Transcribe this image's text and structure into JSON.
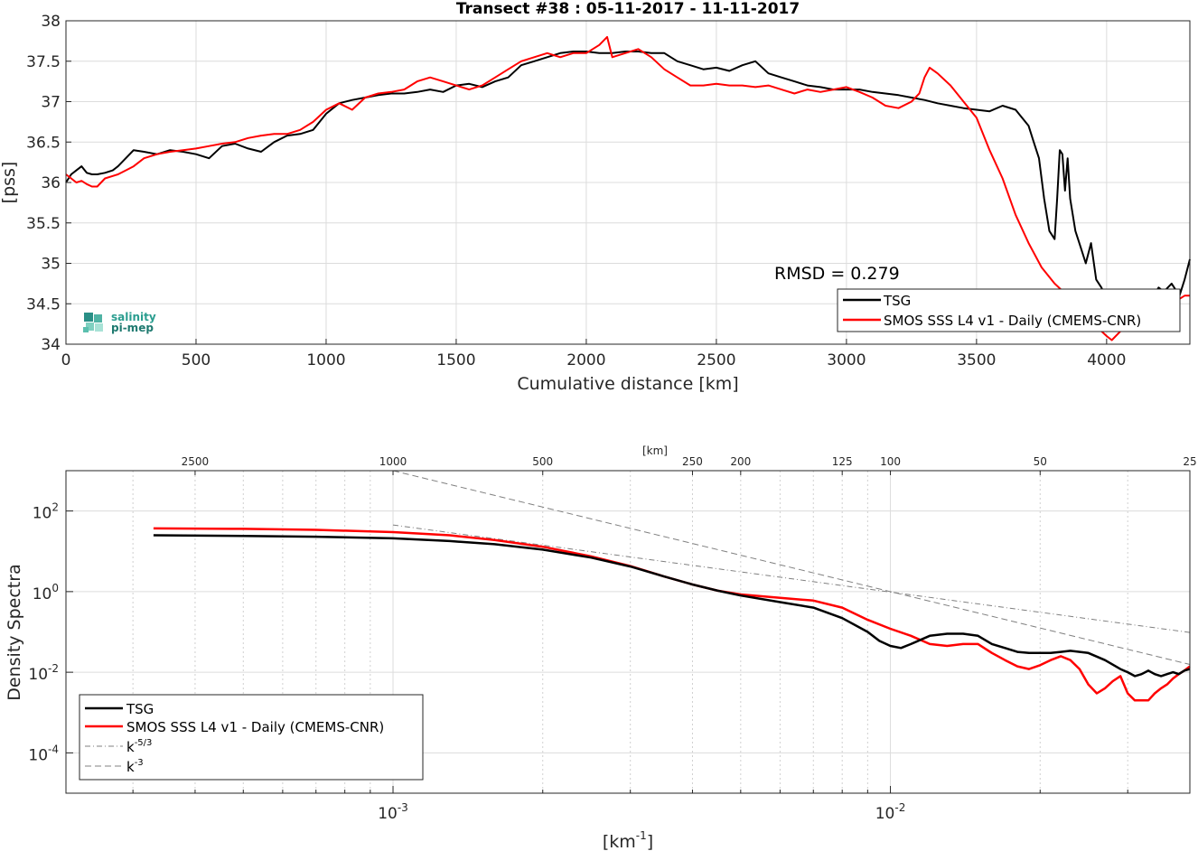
{
  "chart_data": [
    {
      "type": "line",
      "title": "Transect #38 : 05-11-2017 - 11-11-2017",
      "xlabel": "Cumulative distance [km]",
      "ylabel": "[pss]",
      "xlim": [
        0,
        4320
      ],
      "ylim": [
        34,
        38
      ],
      "xticks": [
        0,
        500,
        1000,
        1500,
        2000,
        2500,
        3000,
        3500,
        4000
      ],
      "yticks": [
        34,
        34.5,
        35,
        35.5,
        36,
        36.5,
        37,
        37.5,
        38
      ],
      "grid": true,
      "legend_position": "bottom-right",
      "annotation": "RMSD = 0.279",
      "logo": [
        "salinity",
        "pi-mep"
      ],
      "series": [
        {
          "name": "TSG",
          "color": "#000000",
          "x": [
            0,
            20,
            40,
            60,
            80,
            100,
            120,
            150,
            180,
            200,
            230,
            260,
            300,
            350,
            400,
            450,
            500,
            550,
            600,
            650,
            700,
            750,
            800,
            850,
            900,
            950,
            1000,
            1050,
            1100,
            1150,
            1200,
            1250,
            1300,
            1350,
            1400,
            1450,
            1500,
            1550,
            1600,
            1650,
            1700,
            1750,
            1800,
            1850,
            1900,
            1950,
            2000,
            2050,
            2100,
            2150,
            2200,
            2250,
            2300,
            2350,
            2400,
            2450,
            2500,
            2550,
            2600,
            2650,
            2700,
            2750,
            2800,
            2850,
            2900,
            2950,
            3000,
            3050,
            3100,
            3150,
            3200,
            3250,
            3300,
            3350,
            3400,
            3450,
            3500,
            3550,
            3600,
            3650,
            3700,
            3720,
            3740,
            3760,
            3780,
            3800,
            3810,
            3820,
            3830,
            3840,
            3850,
            3860,
            3880,
            3900,
            3920,
            3940,
            3960,
            3980,
            4000,
            4020,
            4040,
            4060,
            4080,
            4100,
            4120,
            4140,
            4160,
            4180,
            4200,
            4220,
            4250,
            4280,
            4300,
            4320
          ],
          "y": [
            36.0,
            36.1,
            36.15,
            36.2,
            36.12,
            36.1,
            36.1,
            36.12,
            36.15,
            36.2,
            36.3,
            36.4,
            36.38,
            36.35,
            36.4,
            36.38,
            36.35,
            36.3,
            36.45,
            36.48,
            36.42,
            36.38,
            36.5,
            36.58,
            36.6,
            36.65,
            36.85,
            36.98,
            37.02,
            37.05,
            37.08,
            37.1,
            37.1,
            37.12,
            37.15,
            37.12,
            37.2,
            37.22,
            37.18,
            37.25,
            37.3,
            37.45,
            37.5,
            37.55,
            37.6,
            37.62,
            37.62,
            37.6,
            37.6,
            37.62,
            37.62,
            37.6,
            37.6,
            37.5,
            37.45,
            37.4,
            37.42,
            37.38,
            37.45,
            37.5,
            37.35,
            37.3,
            37.25,
            37.2,
            37.18,
            37.15,
            37.15,
            37.15,
            37.12,
            37.1,
            37.08,
            37.05,
            37.02,
            36.98,
            36.95,
            36.92,
            36.9,
            36.88,
            36.95,
            36.9,
            36.7,
            36.5,
            36.3,
            35.8,
            35.4,
            35.3,
            35.8,
            36.4,
            36.35,
            35.9,
            36.3,
            35.8,
            35.4,
            35.2,
            35.0,
            35.25,
            34.8,
            34.7,
            34.55,
            34.5,
            34.6,
            34.55,
            34.5,
            34.45,
            34.5,
            34.5,
            34.55,
            34.6,
            34.7,
            34.65,
            34.75,
            34.6,
            34.8,
            35.05
          ]
        },
        {
          "name": "SMOS SSS L4 v1 - Daily (CMEMS-CNR)",
          "color": "#ff0000",
          "x": [
            0,
            20,
            40,
            60,
            80,
            100,
            120,
            150,
            180,
            200,
            230,
            260,
            300,
            350,
            400,
            450,
            500,
            550,
            600,
            650,
            700,
            750,
            800,
            850,
            900,
            950,
            1000,
            1050,
            1100,
            1150,
            1200,
            1250,
            1300,
            1350,
            1400,
            1450,
            1500,
            1550,
            1600,
            1650,
            1700,
            1750,
            1800,
            1850,
            1900,
            1950,
            2000,
            2050,
            2080,
            2100,
            2150,
            2200,
            2250,
            2300,
            2350,
            2400,
            2450,
            2500,
            2550,
            2600,
            2650,
            2700,
            2750,
            2800,
            2850,
            2900,
            2950,
            3000,
            3050,
            3100,
            3150,
            3200,
            3250,
            3280,
            3300,
            3320,
            3350,
            3400,
            3450,
            3500,
            3550,
            3600,
            3650,
            3700,
            3750,
            3800,
            3850,
            3900,
            3950,
            4000,
            4020,
            4050,
            4100,
            4150,
            4200,
            4250,
            4300,
            4320
          ],
          "y": [
            36.1,
            36.05,
            36.0,
            36.02,
            35.98,
            35.95,
            35.95,
            36.05,
            36.08,
            36.1,
            36.15,
            36.2,
            36.3,
            36.35,
            36.38,
            36.4,
            36.42,
            36.45,
            36.48,
            36.5,
            36.55,
            36.58,
            36.6,
            36.6,
            36.65,
            36.75,
            36.9,
            36.98,
            36.9,
            37.05,
            37.1,
            37.12,
            37.15,
            37.25,
            37.3,
            37.25,
            37.2,
            37.15,
            37.2,
            37.3,
            37.4,
            37.5,
            37.55,
            37.6,
            37.55,
            37.6,
            37.6,
            37.7,
            37.8,
            37.55,
            37.6,
            37.65,
            37.55,
            37.4,
            37.3,
            37.2,
            37.2,
            37.22,
            37.2,
            37.2,
            37.18,
            37.2,
            37.15,
            37.1,
            37.15,
            37.12,
            37.15,
            37.18,
            37.12,
            37.05,
            36.95,
            36.92,
            37.0,
            37.1,
            37.3,
            37.42,
            37.35,
            37.2,
            37.0,
            36.8,
            36.4,
            36.05,
            35.6,
            35.25,
            34.95,
            34.75,
            34.6,
            34.45,
            34.25,
            34.1,
            34.05,
            34.15,
            34.35,
            34.45,
            34.5,
            34.5,
            34.6,
            34.6
          ]
        }
      ]
    },
    {
      "type": "line",
      "title": "",
      "xlabel": "[km-1]",
      "xlabel_base": "[km",
      "xlabel_sup": "-1",
      "xlabel_end": "]",
      "ylabel": "Density Spectra",
      "xscale": "log",
      "yscale": "log",
      "xlim": [
        0.00022,
        0.04
      ],
      "ylim": [
        1e-05,
        1000
      ],
      "xticks": [
        "10-3",
        "10-2"
      ],
      "yticks": [
        "10-4",
        "10-2",
        "100",
        "102"
      ],
      "top_axis_label": "[km]",
      "top_axis_ticks": [
        "2500",
        "1000",
        "500",
        "250",
        "200",
        "125",
        "100",
        "50",
        "25"
      ],
      "top_axis_values": [
        2500,
        1000,
        500,
        250,
        200,
        125,
        100,
        50,
        25
      ],
      "grid": true,
      "legend_position": "bottom-left",
      "series": [
        {
          "name": "TSG",
          "color": "#000000",
          "x": [
            0.00033,
            0.0005,
            0.0007,
            0.001,
            0.0013,
            0.0016,
            0.002,
            0.0025,
            0.003,
            0.0035,
            0.004,
            0.0045,
            0.005,
            0.006,
            0.007,
            0.008,
            0.009,
            0.0095,
            0.01,
            0.0105,
            0.011,
            0.012,
            0.013,
            0.014,
            0.015,
            0.016,
            0.017,
            0.018,
            0.019,
            0.02,
            0.021,
            0.022,
            0.023,
            0.025,
            0.027,
            0.029,
            0.03,
            0.031,
            0.032,
            0.033,
            0.034,
            0.035,
            0.036,
            0.037,
            0.038,
            0.039,
            0.04
          ],
          "y": [
            25,
            24,
            23,
            21,
            18,
            15,
            11,
            7,
            4.2,
            2.4,
            1.5,
            1.05,
            0.8,
            0.55,
            0.4,
            0.22,
            0.1,
            0.06,
            0.045,
            0.04,
            0.05,
            0.08,
            0.09,
            0.09,
            0.08,
            0.05,
            0.04,
            0.032,
            0.03,
            0.03,
            0.03,
            0.032,
            0.034,
            0.03,
            0.02,
            0.012,
            0.01,
            0.008,
            0.009,
            0.011,
            0.009,
            0.008,
            0.009,
            0.01,
            0.009,
            0.011,
            0.012
          ]
        },
        {
          "name": "SMOS SSS L4 v1 - Daily (CMEMS-CNR)",
          "color": "#ff0000",
          "x": [
            0.00033,
            0.0005,
            0.0007,
            0.001,
            0.0013,
            0.0016,
            0.002,
            0.0025,
            0.003,
            0.0035,
            0.004,
            0.0045,
            0.005,
            0.006,
            0.007,
            0.008,
            0.009,
            0.01,
            0.011,
            0.012,
            0.013,
            0.014,
            0.015,
            0.016,
            0.017,
            0.018,
            0.019,
            0.02,
            0.021,
            0.022,
            0.023,
            0.024,
            0.025,
            0.026,
            0.027,
            0.028,
            0.029,
            0.03,
            0.031,
            0.032,
            0.033,
            0.034,
            0.035,
            0.036,
            0.037,
            0.038,
            0.039,
            0.04
          ],
          "y": [
            37,
            36,
            34,
            30,
            25,
            19,
            13,
            7.5,
            4.3,
            2.4,
            1.5,
            1.05,
            0.85,
            0.7,
            0.6,
            0.4,
            0.2,
            0.12,
            0.08,
            0.05,
            0.045,
            0.05,
            0.05,
            0.03,
            0.02,
            0.014,
            0.012,
            0.015,
            0.02,
            0.025,
            0.02,
            0.012,
            0.005,
            0.003,
            0.004,
            0.006,
            0.008,
            0.003,
            0.002,
            0.002,
            0.002,
            0.003,
            0.004,
            0.005,
            0.007,
            0.009,
            0.011,
            0.014
          ]
        },
        {
          "name": "k-5/3",
          "name_base": "k",
          "name_sup": "-5/3",
          "color": "#808080",
          "dash": "dashdot",
          "x": [
            0.001,
            0.04
          ],
          "y": [
            45,
            0.097
          ]
        },
        {
          "name": "k-3",
          "name_base": "k",
          "name_sup": "-3",
          "color": "#808080",
          "dash": "dashed",
          "x": [
            0.001,
            0.04
          ],
          "y": [
            1000,
            0.0156
          ]
        }
      ]
    }
  ]
}
